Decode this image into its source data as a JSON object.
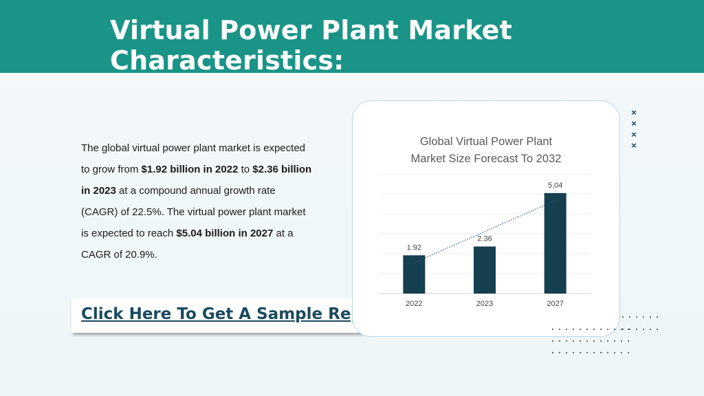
{
  "header": {
    "title": "Virtual Power Plant Market Characteristics:"
  },
  "description": {
    "p1": "The global virtual power plant market is expected to grow from ",
    "b1": "$1.92 billion in 2022",
    "p2": " to ",
    "b2": "$2.36 billion in 2023",
    "p3": " at a compound annual growth rate (CAGR) of 22.5%. The virtual power plant market is expected to reach ",
    "b3": "$5.04 billion in 2027",
    "p4": " at a CAGR of 20.9%."
  },
  "cta": {
    "label": "Click Here To Get A Sample Report"
  },
  "decor": {
    "x_marks": [
      "×",
      "×",
      "×",
      "×"
    ]
  },
  "colors": {
    "header": "#1b9488",
    "bar": "#163f4f",
    "link": "#1a4a5e"
  },
  "chart_data": {
    "type": "bar",
    "title": "Global Virtual Power Plant Market Size Forecast To 2032",
    "title_lines": [
      "Global Virtual Power Plant",
      "Market Size Forecast To 2032"
    ],
    "categories": [
      "2022",
      "2023",
      "2027"
    ],
    "values": [
      1.92,
      2.36,
      5.04
    ],
    "data_labels": [
      "1.92",
      "2.36",
      "5.04"
    ],
    "ylim": [
      0,
      6
    ],
    "grid": true,
    "trendline": "linear dotted",
    "xlabel": "",
    "ylabel": ""
  }
}
